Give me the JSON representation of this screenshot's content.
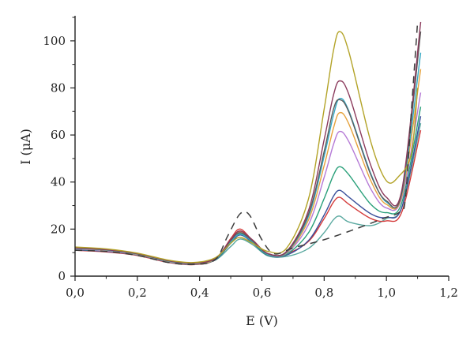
{
  "chart_data": {
    "type": "line",
    "xlabel": "E (V)",
    "ylabel": "I (μA)",
    "xlim": [
      0.0,
      1.2
    ],
    "ylim": [
      0,
      110
    ],
    "x_ticks": [
      0.0,
      0.2,
      0.4,
      0.6,
      0.8,
      1.0,
      1.2
    ],
    "x_tick_labels": [
      "0,0",
      "0,2",
      "0,4",
      "0,6",
      "0,8",
      "1,0",
      "1,2"
    ],
    "y_ticks": [
      0,
      20,
      40,
      60,
      80,
      100
    ],
    "y_tick_labels": [
      "0",
      "20",
      "40",
      "60",
      "80",
      "100"
    ],
    "grid": false,
    "legend": "none",
    "series": [
      {
        "color": "#5aa9a0",
        "style": "solid",
        "points": [
          [
            0.0,
            11.6
          ],
          [
            0.1,
            10.9
          ],
          [
            0.2,
            9.2
          ],
          [
            0.3,
            6.2
          ],
          [
            0.38,
            5.2
          ],
          [
            0.45,
            6.8
          ],
          [
            0.5,
            12.6
          ],
          [
            0.53,
            15.8
          ],
          [
            0.57,
            13.4
          ],
          [
            0.62,
            8.6
          ],
          [
            0.68,
            8.4
          ],
          [
            0.75,
            11.8
          ],
          [
            0.8,
            18.5
          ],
          [
            0.83,
            24.0
          ],
          [
            0.85,
            25.5
          ],
          [
            0.88,
            23.0
          ],
          [
            0.95,
            21.5
          ],
          [
            1.0,
            24.5
          ],
          [
            1.05,
            29.5
          ],
          [
            1.11,
            65.0
          ]
        ]
      },
      {
        "color": "#d43b3b",
        "style": "solid",
        "points": [
          [
            0.0,
            11.0
          ],
          [
            0.1,
            10.3
          ],
          [
            0.2,
            8.8
          ],
          [
            0.3,
            5.8
          ],
          [
            0.38,
            4.9
          ],
          [
            0.45,
            7.0
          ],
          [
            0.5,
            16.0
          ],
          [
            0.53,
            20.0
          ],
          [
            0.57,
            15.2
          ],
          [
            0.62,
            9.2
          ],
          [
            0.68,
            9.6
          ],
          [
            0.75,
            14.8
          ],
          [
            0.8,
            24.5
          ],
          [
            0.83,
            31.5
          ],
          [
            0.85,
            33.5
          ],
          [
            0.88,
            30.5
          ],
          [
            0.95,
            24.5
          ],
          [
            1.0,
            23.5
          ],
          [
            1.05,
            27.5
          ],
          [
            1.11,
            62.0
          ]
        ]
      },
      {
        "color": "#3a4f9a",
        "style": "solid",
        "points": [
          [
            0.0,
            11.2
          ],
          [
            0.1,
            10.5
          ],
          [
            0.2,
            9.0
          ],
          [
            0.3,
            6.0
          ],
          [
            0.38,
            5.0
          ],
          [
            0.45,
            6.9
          ],
          [
            0.5,
            14.0
          ],
          [
            0.53,
            17.5
          ],
          [
            0.57,
            14.2
          ],
          [
            0.62,
            8.8
          ],
          [
            0.68,
            9.0
          ],
          [
            0.75,
            15.2
          ],
          [
            0.8,
            26.0
          ],
          [
            0.83,
            34.0
          ],
          [
            0.85,
            36.5
          ],
          [
            0.88,
            33.5
          ],
          [
            0.95,
            26.5
          ],
          [
            1.0,
            25.0
          ],
          [
            1.05,
            29.5
          ],
          [
            1.11,
            68.0
          ]
        ]
      },
      {
        "color": "#2aa07a",
        "style": "solid",
        "points": [
          [
            0.0,
            11.4
          ],
          [
            0.1,
            10.7
          ],
          [
            0.2,
            9.1
          ],
          [
            0.3,
            6.1
          ],
          [
            0.38,
            5.1
          ],
          [
            0.45,
            7.0
          ],
          [
            0.5,
            14.5
          ],
          [
            0.53,
            18.0
          ],
          [
            0.57,
            14.5
          ],
          [
            0.62,
            8.9
          ],
          [
            0.68,
            9.4
          ],
          [
            0.75,
            18.5
          ],
          [
            0.8,
            33.0
          ],
          [
            0.83,
            43.0
          ],
          [
            0.85,
            46.5
          ],
          [
            0.88,
            43.0
          ],
          [
            0.95,
            30.5
          ],
          [
            1.0,
            27.0
          ],
          [
            1.05,
            31.5
          ],
          [
            1.11,
            72.0
          ]
        ]
      },
      {
        "color": "#b57ad6",
        "style": "solid",
        "points": [
          [
            0.0,
            11.6
          ],
          [
            0.1,
            10.8
          ],
          [
            0.2,
            9.2
          ],
          [
            0.3,
            6.2
          ],
          [
            0.38,
            5.2
          ],
          [
            0.45,
            7.2
          ],
          [
            0.5,
            15.0
          ],
          [
            0.53,
            18.5
          ],
          [
            0.57,
            15.0
          ],
          [
            0.62,
            9.2
          ],
          [
            0.68,
            9.8
          ],
          [
            0.75,
            22.0
          ],
          [
            0.8,
            42.0
          ],
          [
            0.83,
            56.0
          ],
          [
            0.85,
            61.5
          ],
          [
            0.88,
            57.0
          ],
          [
            0.95,
            37.0
          ],
          [
            1.0,
            29.0
          ],
          [
            1.05,
            33.5
          ],
          [
            1.11,
            78.0
          ]
        ]
      },
      {
        "color": "#e6a23c",
        "style": "solid",
        "points": [
          [
            0.0,
            11.8
          ],
          [
            0.1,
            11.0
          ],
          [
            0.2,
            9.3
          ],
          [
            0.3,
            6.3
          ],
          [
            0.38,
            5.3
          ],
          [
            0.45,
            7.3
          ],
          [
            0.5,
            15.5
          ],
          [
            0.53,
            19.0
          ],
          [
            0.57,
            15.2
          ],
          [
            0.62,
            9.4
          ],
          [
            0.68,
            10.0
          ],
          [
            0.75,
            24.0
          ],
          [
            0.8,
            47.0
          ],
          [
            0.83,
            63.0
          ],
          [
            0.85,
            69.5
          ],
          [
            0.88,
            64.5
          ],
          [
            0.95,
            40.5
          ],
          [
            1.0,
            30.5
          ],
          [
            1.05,
            34.5
          ],
          [
            1.11,
            88.0
          ]
        ]
      },
      {
        "color": "#36a9c4",
        "style": "solid",
        "points": [
          [
            0.0,
            11.9
          ],
          [
            0.1,
            11.1
          ],
          [
            0.2,
            9.4
          ],
          [
            0.3,
            6.4
          ],
          [
            0.38,
            5.4
          ],
          [
            0.45,
            7.4
          ],
          [
            0.5,
            14.5
          ],
          [
            0.53,
            17.8
          ],
          [
            0.57,
            14.6
          ],
          [
            0.62,
            9.3
          ],
          [
            0.68,
            10.2
          ],
          [
            0.75,
            25.5
          ],
          [
            0.8,
            51.0
          ],
          [
            0.83,
            68.5
          ],
          [
            0.85,
            75.5
          ],
          [
            0.88,
            70.0
          ],
          [
            0.95,
            43.5
          ],
          [
            1.0,
            31.5
          ],
          [
            1.05,
            35.5
          ],
          [
            1.11,
            95.0
          ]
        ]
      },
      {
        "color": "#5c5c5c",
        "style": "solid",
        "points": [
          [
            0.0,
            12.0
          ],
          [
            0.1,
            11.2
          ],
          [
            0.2,
            9.5
          ],
          [
            0.3,
            6.5
          ],
          [
            0.38,
            5.5
          ],
          [
            0.45,
            7.4
          ],
          [
            0.5,
            15.2
          ],
          [
            0.53,
            18.5
          ],
          [
            0.57,
            15.0
          ],
          [
            0.62,
            9.5
          ],
          [
            0.68,
            10.4
          ],
          [
            0.75,
            26.5
          ],
          [
            0.8,
            53.0
          ],
          [
            0.83,
            71.0
          ],
          [
            0.85,
            75.0
          ],
          [
            0.88,
            69.5
          ],
          [
            0.95,
            43.0
          ],
          [
            1.0,
            32.0
          ],
          [
            1.05,
            36.0
          ],
          [
            1.11,
            104.0
          ]
        ]
      },
      {
        "color": "#8b3a5c",
        "style": "solid",
        "points": [
          [
            0.0,
            12.1
          ],
          [
            0.1,
            11.3
          ],
          [
            0.2,
            9.6
          ],
          [
            0.3,
            6.6
          ],
          [
            0.38,
            5.6
          ],
          [
            0.45,
            7.5
          ],
          [
            0.5,
            15.6
          ],
          [
            0.53,
            19.2
          ],
          [
            0.57,
            15.4
          ],
          [
            0.62,
            9.6
          ],
          [
            0.68,
            10.6
          ],
          [
            0.75,
            28.0
          ],
          [
            0.8,
            58.0
          ],
          [
            0.83,
            77.0
          ],
          [
            0.85,
            83.0
          ],
          [
            0.88,
            77.0
          ],
          [
            0.95,
            47.0
          ],
          [
            1.0,
            33.5
          ],
          [
            1.05,
            37.0
          ],
          [
            1.11,
            108.0
          ]
        ]
      },
      {
        "color": "#b3a328",
        "style": "solid",
        "points": [
          [
            0.0,
            12.4
          ],
          [
            0.1,
            11.6
          ],
          [
            0.2,
            9.8
          ],
          [
            0.3,
            6.8
          ],
          [
            0.38,
            5.8
          ],
          [
            0.45,
            7.8
          ],
          [
            0.5,
            14.0
          ],
          [
            0.53,
            16.5
          ],
          [
            0.57,
            14.0
          ],
          [
            0.62,
            10.5
          ],
          [
            0.68,
            12.0
          ],
          [
            0.75,
            33.0
          ],
          [
            0.8,
            71.0
          ],
          [
            0.83,
            96.0
          ],
          [
            0.85,
            104.0
          ],
          [
            0.88,
            95.0
          ],
          [
            0.95,
            57.0
          ],
          [
            1.0,
            40.5
          ],
          [
            1.04,
            42.5
          ],
          [
            1.08,
            52.0
          ],
          [
            1.1,
            80.0
          ]
        ]
      },
      {
        "color": "#3c3c3c",
        "style": "dashed",
        "points": [
          [
            0.0,
            11.0
          ],
          [
            0.1,
            10.5
          ],
          [
            0.2,
            8.8
          ],
          [
            0.3,
            5.8
          ],
          [
            0.38,
            5.0
          ],
          [
            0.45,
            7.0
          ],
          [
            0.49,
            17.0
          ],
          [
            0.53,
            26.5
          ],
          [
            0.56,
            26.0
          ],
          [
            0.6,
            15.5
          ],
          [
            0.64,
            9.5
          ],
          [
            0.7,
            12.0
          ],
          [
            0.8,
            15.5
          ],
          [
            0.9,
            20.0
          ],
          [
            1.0,
            25.0
          ],
          [
            1.04,
            27.0
          ],
          [
            1.06,
            32.0
          ],
          [
            1.08,
            70.0
          ],
          [
            1.1,
            108.0
          ]
        ]
      }
    ]
  }
}
